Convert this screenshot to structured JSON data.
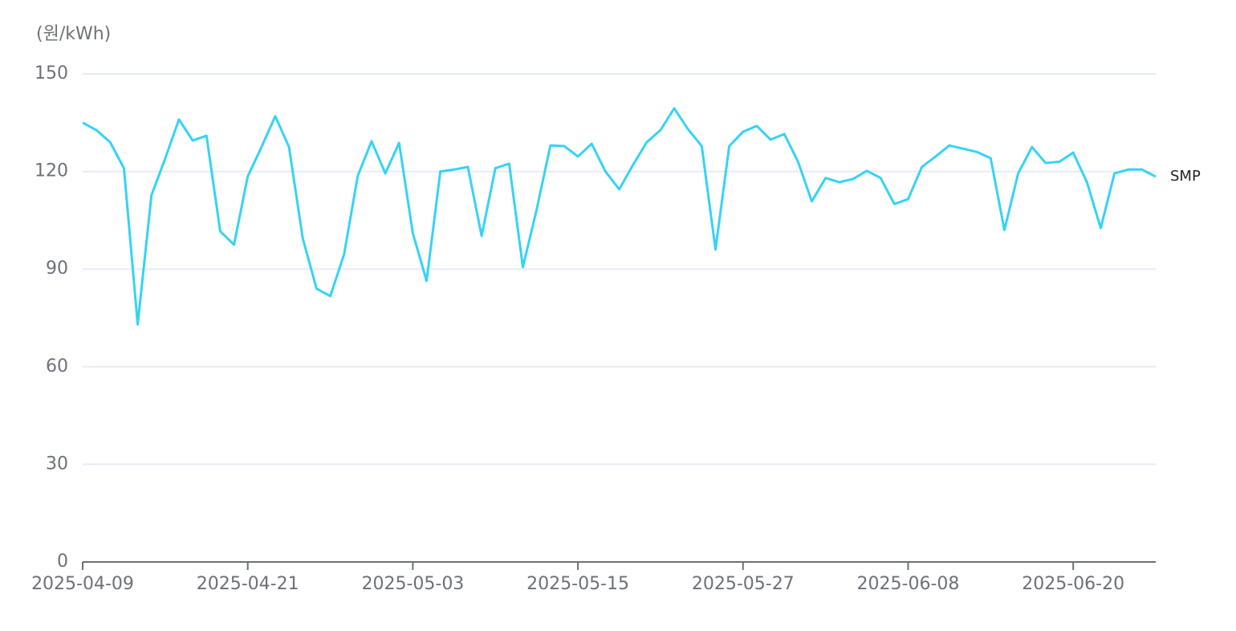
{
  "chart_data": {
    "type": "line",
    "y_axis_label": "(원/kWh)",
    "x": [
      "2025-04-09",
      "2025-04-10",
      "2025-04-11",
      "2025-04-12",
      "2025-04-13",
      "2025-04-14",
      "2025-04-15",
      "2025-04-16",
      "2025-04-17",
      "2025-04-18",
      "2025-04-19",
      "2025-04-20",
      "2025-04-21",
      "2025-04-22",
      "2025-04-23",
      "2025-04-24",
      "2025-04-25",
      "2025-04-26",
      "2025-04-27",
      "2025-04-28",
      "2025-04-29",
      "2025-04-30",
      "2025-05-01",
      "2025-05-02",
      "2025-05-03",
      "2025-05-04",
      "2025-05-05",
      "2025-05-06",
      "2025-05-07",
      "2025-05-08",
      "2025-05-09",
      "2025-05-10",
      "2025-05-11",
      "2025-05-12",
      "2025-05-13",
      "2025-05-14",
      "2025-05-15",
      "2025-05-16",
      "2025-05-17",
      "2025-05-18",
      "2025-05-19",
      "2025-05-20",
      "2025-05-21",
      "2025-05-22",
      "2025-05-23",
      "2025-05-24",
      "2025-05-25",
      "2025-05-26",
      "2025-05-27",
      "2025-05-28",
      "2025-05-29",
      "2025-05-30",
      "2025-05-31",
      "2025-06-01",
      "2025-06-02",
      "2025-06-03",
      "2025-06-04",
      "2025-06-05",
      "2025-06-06",
      "2025-06-07",
      "2025-06-08",
      "2025-06-09",
      "2025-06-10",
      "2025-06-11",
      "2025-06-12",
      "2025-06-13",
      "2025-06-14",
      "2025-06-15",
      "2025-06-16",
      "2025-06-17",
      "2025-06-18",
      "2025-06-19",
      "2025-06-20",
      "2025-06-21",
      "2025-06-22",
      "2025-06-23",
      "2025-06-24",
      "2025-06-25",
      "2025-06-26"
    ],
    "xticks": [
      "2025-04-09",
      "2025-04-21",
      "2025-05-03",
      "2025-05-15",
      "2025-05-27",
      "2025-06-08",
      "2025-06-20"
    ],
    "series": [
      {
        "name": "SMP",
        "color": "#35d3f5",
        "values": [
          135,
          132.7,
          129,
          121,
          73,
          112.7,
          124,
          136,
          129.5,
          131,
          101.6,
          97.5,
          118.5,
          127.5,
          137,
          127.5,
          99.4,
          84,
          81.7,
          94.5,
          118.7,
          129.3,
          119.4,
          128.8,
          101,
          86.4,
          120,
          120.6,
          121.4,
          100.2,
          121,
          122.4,
          90.6,
          108.3,
          128,
          127.8,
          124.6,
          128.5,
          120,
          114.5,
          122,
          129,
          132.7,
          139.4,
          133,
          127.8,
          96,
          127.8,
          132.2,
          134,
          129.8,
          131.5,
          123,
          110.8,
          118,
          116.7,
          117.7,
          120.2,
          118,
          110,
          111.5,
          121.4,
          124.6,
          128,
          127,
          126,
          124.1,
          102,
          119.4,
          127.5,
          122.6,
          123,
          125.8,
          116.7,
          102.6,
          119.4,
          120.6,
          120.6,
          118.4
        ]
      }
    ],
    "ylim": [
      0,
      150
    ],
    "yticks": [
      0,
      30,
      60,
      90,
      120,
      150
    ],
    "grid": true
  }
}
